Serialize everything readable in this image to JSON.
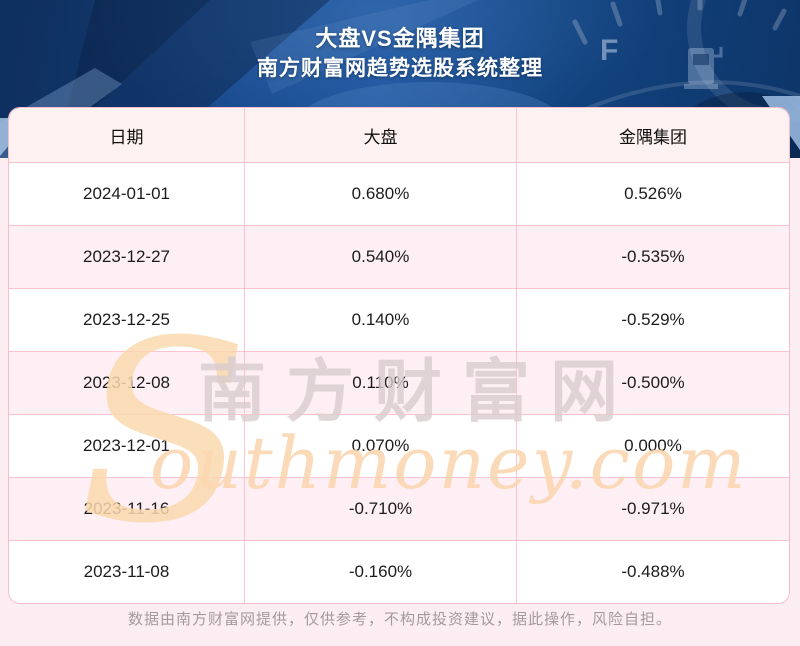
{
  "header": {
    "title": "大盘VS金隅集团",
    "subtitle": "南方财富网趋势选股系统整理",
    "gauge_label": "F"
  },
  "table": {
    "columns": [
      "日期",
      "大盘",
      "金隅集团"
    ],
    "rows": [
      {
        "date": "2024-01-01",
        "dapan": "0.680%",
        "jinyu": "0.526%"
      },
      {
        "date": "2023-12-27",
        "dapan": "0.540%",
        "jinyu": "-0.535%"
      },
      {
        "date": "2023-12-25",
        "dapan": "0.140%",
        "jinyu": "-0.529%"
      },
      {
        "date": "2023-12-08",
        "dapan": "0.110%",
        "jinyu": "-0.500%"
      },
      {
        "date": "2023-12-01",
        "dapan": "0.070%",
        "jinyu": "0.000%"
      },
      {
        "date": "2023-11-16",
        "dapan": "-0.710%",
        "jinyu": "-0.971%"
      },
      {
        "date": "2023-11-08",
        "dapan": "-0.160%",
        "jinyu": "-0.488%"
      }
    ]
  },
  "watermark": {
    "swoosh": "S",
    "cjk": "南方财富网",
    "latin": "outhmoney.com"
  },
  "footer": {
    "disclaimer": "数据由南方财富网提供，仅供参考，不构成投资建议，据此操作，风险自担。"
  },
  "colors": {
    "banner_blue": "#17498C",
    "grid_pink": "#FFC3D0",
    "header_row_pink": "#FDF1F1",
    "alt_row_pink": "#FDEFF4",
    "page_pink": "#FCEDF2",
    "watermark_peach": "#FBD9AE",
    "watermark_gray": "#D9CDCF",
    "footer_gray": "#A39A9E"
  },
  "chart_data": {
    "type": "table",
    "title": "大盘VS金隅集团",
    "subtitle": "南方财富网趋势选股系统整理",
    "columns": [
      "日期",
      "大盘",
      "金隅集团"
    ],
    "categories": [
      "2024-01-01",
      "2023-12-27",
      "2023-12-25",
      "2023-12-08",
      "2023-12-01",
      "2023-11-16",
      "2023-11-08"
    ],
    "series": [
      {
        "name": "大盘",
        "unit": "%",
        "values": [
          0.68,
          0.54,
          0.14,
          0.11,
          0.07,
          -0.71,
          -0.16
        ]
      },
      {
        "name": "金隅集团",
        "unit": "%",
        "values": [
          0.526,
          -0.535,
          -0.529,
          -0.5,
          0.0,
          -0.971,
          -0.488
        ]
      }
    ]
  }
}
